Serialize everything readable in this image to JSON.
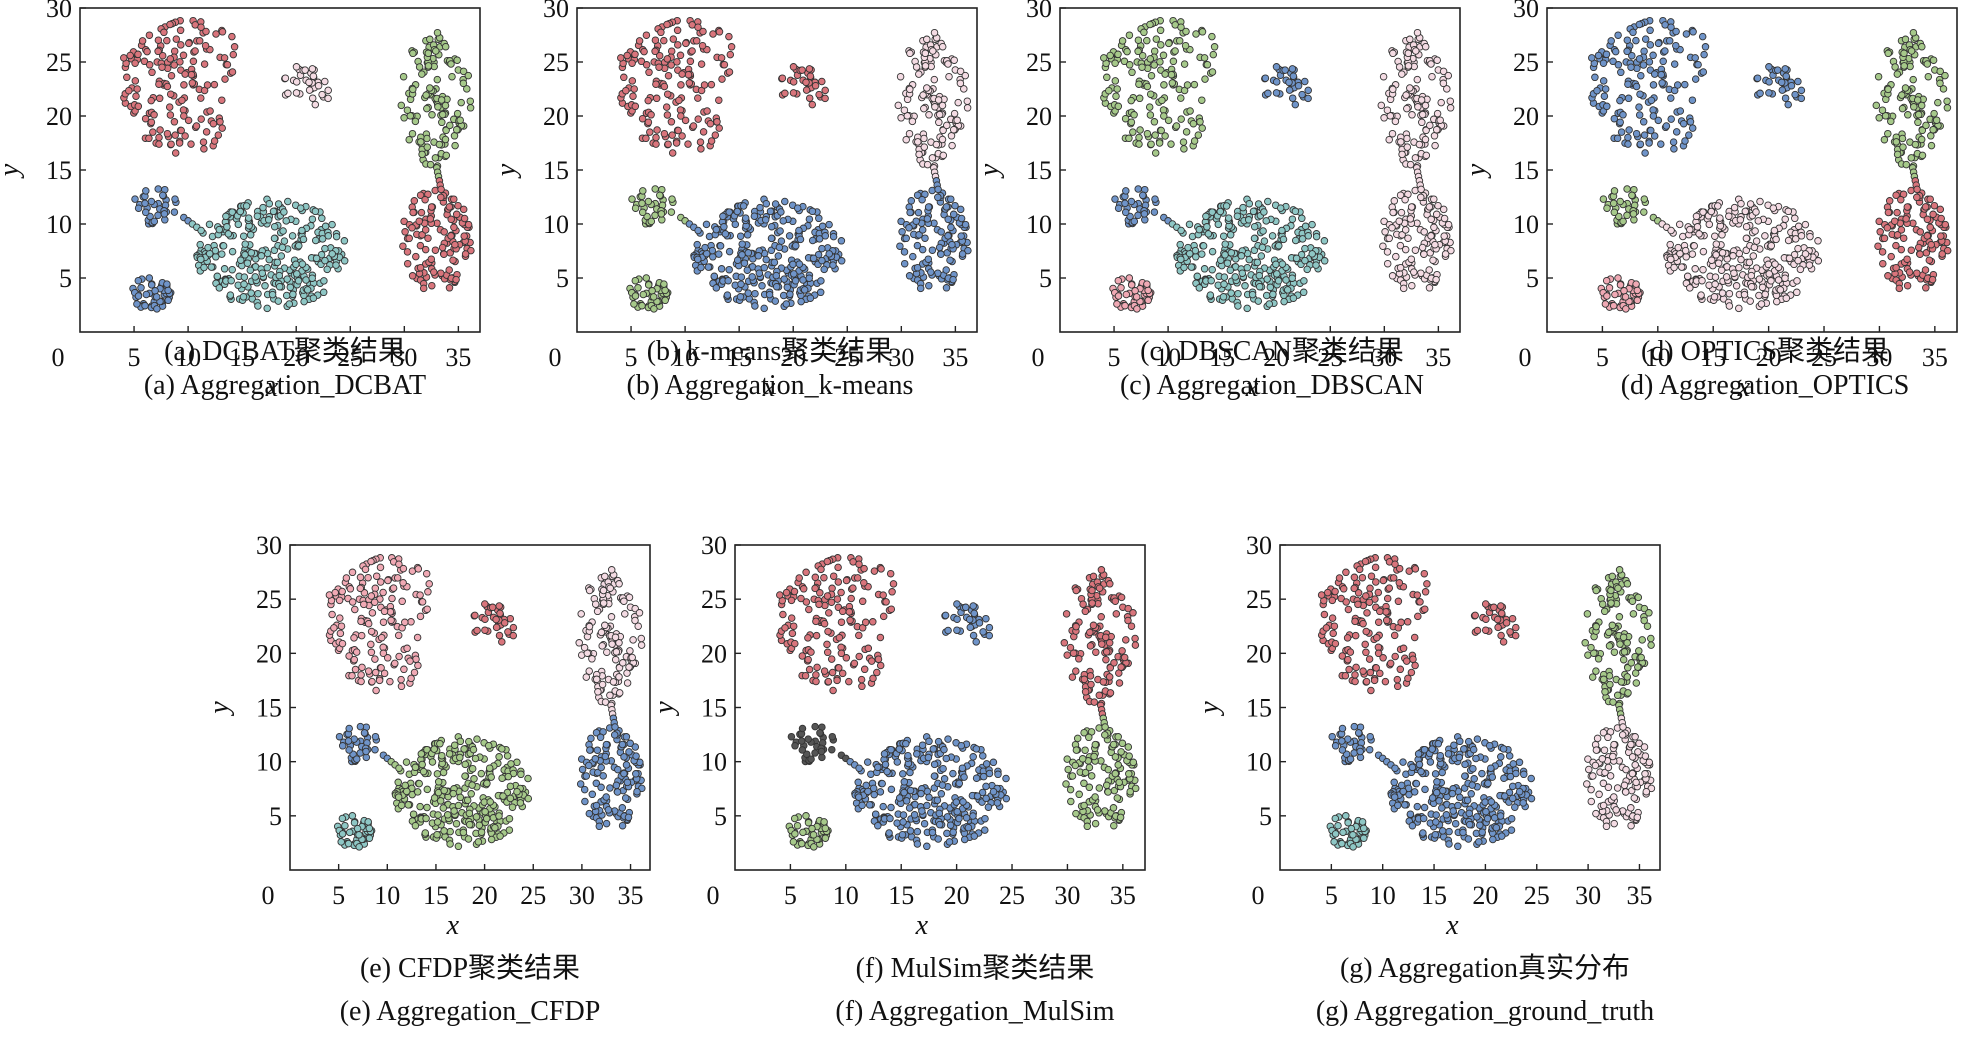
{
  "figure": {
    "panels": [
      {
        "id": "a",
        "caption_cn": "(a) DCBAT聚类结果",
        "caption_en": "(a) Aggregation_DCBAT",
        "xlabel": "x",
        "ylabel": "y",
        "xticks": [
          "0",
          "5",
          "10",
          "15",
          "20",
          "25",
          "30",
          "35"
        ],
        "yticks": [
          "5",
          "10",
          "15",
          "20",
          "25",
          "30"
        ]
      },
      {
        "id": "b",
        "caption_cn": "(b) k-means聚类结果",
        "caption_en": "(b) Aggregation_k-means",
        "xlabel": "x",
        "ylabel": "y",
        "xticks": [
          "0",
          "5",
          "10",
          "15",
          "20",
          "25",
          "30",
          "35"
        ],
        "yticks": [
          "5",
          "10",
          "15",
          "20",
          "25",
          "30"
        ]
      },
      {
        "id": "c",
        "caption_cn": "(c) DBSCAN聚类结果",
        "caption_en": "(c) Aggregation_DBSCAN",
        "xlabel": "x",
        "ylabel": "y",
        "xticks": [
          "0",
          "5",
          "10",
          "15",
          "20",
          "25",
          "30",
          "35"
        ],
        "yticks": [
          "5",
          "10",
          "15",
          "20",
          "25",
          "30"
        ]
      },
      {
        "id": "d",
        "caption_cn": "(d) OPTICS聚类结果",
        "caption_en": "(d) Aggregation_OPTICS",
        "xlabel": "x",
        "ylabel": "y",
        "xticks": [
          "0",
          "5",
          "10",
          "15",
          "20",
          "25",
          "30",
          "35"
        ],
        "yticks": [
          "5",
          "10",
          "15",
          "20",
          "25",
          "30"
        ]
      },
      {
        "id": "e",
        "caption_cn": "(e) CFDP聚类结果",
        "caption_en": "(e) Aggregation_CFDP",
        "xlabel": "x",
        "ylabel": "y",
        "xticks": [
          "0",
          "5",
          "10",
          "15",
          "20",
          "25",
          "30",
          "35"
        ],
        "yticks": [
          "5",
          "10",
          "15",
          "20",
          "25",
          "30"
        ]
      },
      {
        "id": "f",
        "caption_cn": "(f) MulSim聚类结果",
        "caption_en": "(f) Aggregation_MulSim",
        "xlabel": "x",
        "ylabel": "y",
        "xticks": [
          "0",
          "5",
          "10",
          "15",
          "20",
          "25",
          "30",
          "35"
        ],
        "yticks": [
          "5",
          "10",
          "15",
          "20",
          "25",
          "30"
        ]
      },
      {
        "id": "g",
        "caption_cn": "(g) Aggregation真实分布",
        "caption_en": "(g) Aggregation_ground_truth",
        "xlabel": "x",
        "ylabel": "y",
        "xticks": [
          "0",
          "5",
          "10",
          "15",
          "20",
          "25",
          "30",
          "35"
        ],
        "yticks": [
          "5",
          "10",
          "15",
          "20",
          "25",
          "30"
        ]
      }
    ]
  },
  "chart_data": [
    {
      "type": "scatter",
      "panel": "a",
      "title": "(a) DCBAT聚类结果",
      "xlabel": "x",
      "ylabel": "y",
      "xlim": [
        0,
        37
      ],
      "ylim": [
        0,
        30
      ],
      "marker_edge_color": "#222222",
      "palette": {
        "red": "#d9757c",
        "pink": "#f0a9b4",
        "green": "#a6c98a",
        "blue": "#6f94c9",
        "teal": "#8ec7c5",
        "lightpink": "#f4dbe3",
        "dark": "#555555"
      },
      "clusters": [
        {
          "region": "left-top crescent",
          "center": [
            10,
            23
          ],
          "color": "red"
        },
        {
          "region": "top-middle small",
          "center": [
            21,
            22.5
          ],
          "color": "lightpink"
        },
        {
          "region": "right upper ellipse",
          "center": [
            33,
            21.5
          ],
          "color": "green"
        },
        {
          "region": "right lower ellipse",
          "center": [
            33,
            8.5
          ],
          "color": "red"
        },
        {
          "region": "left small middle",
          "center": [
            7,
            11.5
          ],
          "color": "blue"
        },
        {
          "region": "left bottom small",
          "center": [
            6.5,
            3.5
          ],
          "color": "blue"
        },
        {
          "region": "center large",
          "center": [
            18,
            7
          ],
          "color": "teal"
        }
      ]
    },
    {
      "type": "scatter",
      "panel": "b",
      "title": "(b) k-means聚类结果",
      "xlabel": "x",
      "ylabel": "y",
      "xlim": [
        0,
        37
      ],
      "ylim": [
        0,
        30
      ],
      "palette": {
        "red": "#d9757c",
        "pink": "#f0a9b4",
        "green": "#a6c98a",
        "blue": "#6f94c9",
        "teal": "#8ec7c5",
        "lightpink": "#f4dbe3",
        "dark": "#555555"
      },
      "clusters": [
        {
          "region": "left-top crescent",
          "center": [
            10,
            23
          ],
          "color": "red"
        },
        {
          "region": "top-middle small",
          "center": [
            21,
            22.5
          ],
          "color": "red"
        },
        {
          "region": "right upper ellipse",
          "center": [
            33,
            21.5
          ],
          "color": "lightpink"
        },
        {
          "region": "right lower ellipse",
          "center": [
            33,
            8.5
          ],
          "color": "blue"
        },
        {
          "region": "left small middle",
          "center": [
            7,
            11.5
          ],
          "color": "green"
        },
        {
          "region": "left bottom small",
          "center": [
            6.5,
            3.5
          ],
          "color": "green"
        },
        {
          "region": "center large",
          "center": [
            18,
            7
          ],
          "color": "blue"
        }
      ]
    },
    {
      "type": "scatter",
      "panel": "c",
      "title": "(c) DBSCAN聚类结果",
      "xlabel": "x",
      "ylabel": "y",
      "xlim": [
        0,
        37
      ],
      "ylim": [
        0,
        30
      ],
      "palette": {
        "red": "#d9757c",
        "pink": "#f0a9b4",
        "green": "#a6c98a",
        "blue": "#6f94c9",
        "teal": "#8ec7c5",
        "lightpink": "#f4dbe3",
        "dark": "#555555"
      },
      "clusters": [
        {
          "region": "left-top crescent",
          "center": [
            10,
            23
          ],
          "color": "green"
        },
        {
          "region": "top-middle small",
          "center": [
            21,
            22.5
          ],
          "color": "blue"
        },
        {
          "region": "right upper ellipse",
          "center": [
            33,
            21.5
          ],
          "color": "lightpink"
        },
        {
          "region": "right lower ellipse",
          "center": [
            33,
            8.5
          ],
          "color": "lightpink"
        },
        {
          "region": "left small middle",
          "center": [
            7,
            11.5
          ],
          "color": "blue"
        },
        {
          "region": "left bottom small",
          "center": [
            6.5,
            3.5
          ],
          "color": "pink"
        },
        {
          "region": "center large",
          "center": [
            18,
            7
          ],
          "color": "teal"
        }
      ]
    },
    {
      "type": "scatter",
      "panel": "d",
      "title": "(d) OPTICS聚类结果",
      "xlabel": "x",
      "ylabel": "y",
      "xlim": [
        0,
        37
      ],
      "ylim": [
        0,
        30
      ],
      "palette": {
        "red": "#d9757c",
        "pink": "#f0a9b4",
        "green": "#a6c98a",
        "blue": "#6f94c9",
        "teal": "#8ec7c5",
        "lightpink": "#f4dbe3",
        "dark": "#555555"
      },
      "clusters": [
        {
          "region": "left-top crescent",
          "center": [
            10,
            23
          ],
          "color": "blue"
        },
        {
          "region": "top-middle small",
          "center": [
            21,
            22.5
          ],
          "color": "blue"
        },
        {
          "region": "right upper ellipse",
          "center": [
            33,
            21.5
          ],
          "color": "green"
        },
        {
          "region": "right lower ellipse",
          "center": [
            33,
            8.5
          ],
          "color": "red"
        },
        {
          "region": "left small middle",
          "center": [
            7,
            11.5
          ],
          "color": "green"
        },
        {
          "region": "left bottom small",
          "center": [
            6.5,
            3.5
          ],
          "color": "pink"
        },
        {
          "region": "center large",
          "center": [
            18,
            7
          ],
          "color": "lightpink"
        }
      ]
    },
    {
      "type": "scatter",
      "panel": "e",
      "title": "(e) CFDP聚类结果",
      "xlabel": "x",
      "ylabel": "y",
      "xlim": [
        0,
        37
      ],
      "ylim": [
        0,
        30
      ],
      "palette": {
        "red": "#d9757c",
        "pink": "#f0a9b4",
        "green": "#a6c98a",
        "blue": "#6f94c9",
        "teal": "#8ec7c5",
        "lightpink": "#f4dbe3",
        "dark": "#555555"
      },
      "clusters": [
        {
          "region": "left-top crescent",
          "center": [
            10,
            23
          ],
          "color": "pink"
        },
        {
          "region": "top-middle small",
          "center": [
            21,
            22.5
          ],
          "color": "red"
        },
        {
          "region": "right upper ellipse",
          "center": [
            33,
            21.5
          ],
          "color": "lightpink"
        },
        {
          "region": "right lower ellipse",
          "center": [
            33,
            8.5
          ],
          "color": "blue"
        },
        {
          "region": "left small middle",
          "center": [
            7,
            11.5
          ],
          "color": "blue"
        },
        {
          "region": "left bottom small",
          "center": [
            6.5,
            3.5
          ],
          "color": "teal"
        },
        {
          "region": "center large",
          "center": [
            18,
            7
          ],
          "color": "green"
        }
      ]
    },
    {
      "type": "scatter",
      "panel": "f",
      "title": "(f) MulSim聚类结果",
      "xlabel": "x",
      "ylabel": "y",
      "xlim": [
        0,
        37
      ],
      "ylim": [
        0,
        30
      ],
      "palette": {
        "red": "#d9757c",
        "pink": "#f0a9b4",
        "green": "#a6c98a",
        "blue": "#6f94c9",
        "teal": "#8ec7c5",
        "lightpink": "#f4dbe3",
        "dark": "#555555"
      },
      "clusters": [
        {
          "region": "left-top crescent",
          "center": [
            10,
            23
          ],
          "color": "red"
        },
        {
          "region": "top-middle small",
          "center": [
            21,
            22.5
          ],
          "color": "blue"
        },
        {
          "region": "right upper ellipse",
          "center": [
            33,
            21.5
          ],
          "color": "red"
        },
        {
          "region": "right lower ellipse",
          "center": [
            33,
            8.5
          ],
          "color": "green"
        },
        {
          "region": "left small middle",
          "center": [
            7,
            11.5
          ],
          "color": "dark"
        },
        {
          "region": "left bottom small",
          "center": [
            6.5,
            3.5
          ],
          "color": "green"
        },
        {
          "region": "center large",
          "center": [
            18,
            7
          ],
          "color": "blue"
        }
      ]
    },
    {
      "type": "scatter",
      "panel": "g",
      "title": "(g) Aggregation真实分布",
      "xlabel": "x",
      "ylabel": "y",
      "xlim": [
        0,
        37
      ],
      "ylim": [
        0,
        30
      ],
      "palette": {
        "red": "#d9757c",
        "pink": "#f0a9b4",
        "green": "#a6c98a",
        "blue": "#6f94c9",
        "teal": "#8ec7c5",
        "lightpink": "#f4dbe3",
        "dark": "#555555"
      },
      "clusters": [
        {
          "region": "left-top crescent",
          "center": [
            10,
            23
          ],
          "color": "red"
        },
        {
          "region": "top-middle small",
          "center": [
            21,
            22.5
          ],
          "color": "red"
        },
        {
          "region": "right upper ellipse",
          "center": [
            33,
            21.5
          ],
          "color": "green"
        },
        {
          "region": "right lower ellipse",
          "center": [
            33,
            8.5
          ],
          "color": "lightpink"
        },
        {
          "region": "left small middle",
          "center": [
            7,
            11.5
          ],
          "color": "blue"
        },
        {
          "region": "left bottom small",
          "center": [
            6.5,
            3.5
          ],
          "color": "teal"
        },
        {
          "region": "center large",
          "center": [
            18,
            7
          ],
          "color": "blue"
        }
      ]
    }
  ]
}
